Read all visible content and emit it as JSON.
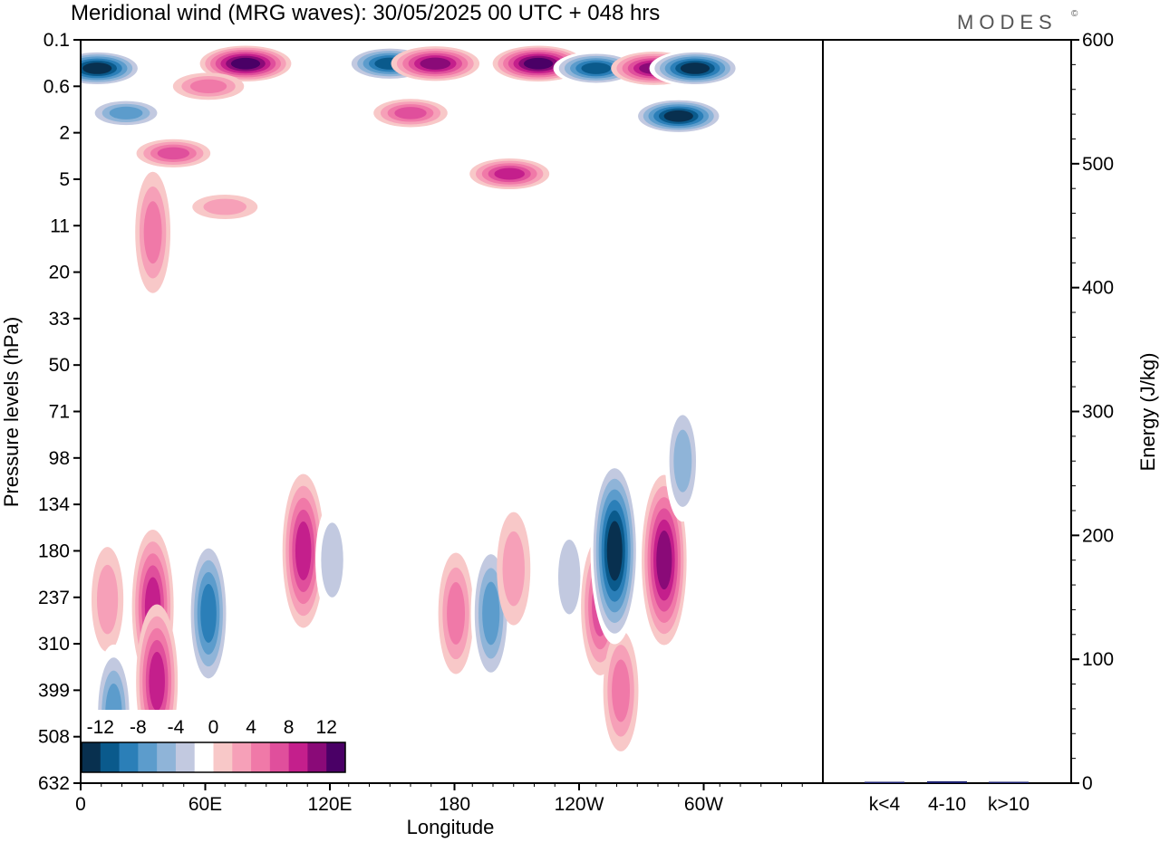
{
  "title": "Meridional wind (MRG waves):  30/05/2025  00 UTC  + 048 hrs",
  "logo": "MODES",
  "logo_mark": "©",
  "chart_data": [
    {
      "type": "heatmap",
      "xlabel": "Longitude",
      "ylabel": "Pressure levels (hPa)",
      "x_ticks": [
        "0",
        "60E",
        "120E",
        "180",
        "120W",
        "60W"
      ],
      "y_ticks": [
        "0.1",
        "0.6",
        "2",
        "5",
        "11",
        "20",
        "33",
        "50",
        "71",
        "98",
        "134",
        "180",
        "237",
        "310",
        "399",
        "508",
        "632"
      ],
      "colorbar": {
        "labels": [
          "-12",
          "-8",
          "-4",
          "0",
          "4",
          "8",
          "12"
        ],
        "levels": [
          -14,
          -12,
          -10,
          -8,
          -6,
          -4,
          -2,
          2,
          4,
          6,
          8,
          10,
          12,
          14
        ],
        "colors": [
          "#08304f",
          "#0a5a8c",
          "#2b7fb8",
          "#5c9ccc",
          "#8fb4d8",
          "#c2c9e0",
          "#ffffff",
          "#f8c8c8",
          "#f6a0b8",
          "#f079a8",
          "#e04f9c",
          "#c41f8c",
          "#8a0a78",
          "#4a0066"
        ]
      },
      "features": [
        {
          "lon": 8,
          "p": 0.3,
          "v": -14
        },
        {
          "lon": 22,
          "p": 1.2,
          "v": -9
        },
        {
          "lon": 45,
          "p": 3.0,
          "v": 8
        },
        {
          "lon": 80,
          "p": 0.25,
          "v": 14
        },
        {
          "lon": 62,
          "p": 0.6,
          "v": 7
        },
        {
          "lon": 150,
          "p": 0.25,
          "v": -13
        },
        {
          "lon": 172,
          "p": 0.25,
          "v": 13
        },
        {
          "lon": 160,
          "p": 1.2,
          "v": 8
        },
        {
          "lon": 222,
          "p": 0.25,
          "v": 14
        },
        {
          "lon": 208,
          "p": 4.5,
          "v": 10
        },
        {
          "lon": 250,
          "p": 0.3,
          "v": -12
        },
        {
          "lon": 278,
          "p": 0.3,
          "v": 12
        },
        {
          "lon": 290,
          "p": 1.3,
          "v": -14
        },
        {
          "lon": 298,
          "p": 0.3,
          "v": -14
        },
        {
          "lon": 35,
          "p": 12,
          "v": 6
        },
        {
          "lon": 70,
          "p": 8,
          "v": 5
        },
        {
          "lon": 35,
          "p": 250,
          "v": 10
        },
        {
          "lon": 37,
          "p": 380,
          "v": 10
        },
        {
          "lon": 13,
          "p": 240,
          "v": 4
        },
        {
          "lon": 16,
          "p": 450,
          "v": -8
        },
        {
          "lon": 62,
          "p": 260,
          "v": -10
        },
        {
          "lon": 108,
          "p": 180,
          "v": 10
        },
        {
          "lon": 122,
          "p": 190,
          "v": -5
        },
        {
          "lon": 182,
          "p": 260,
          "v": 6
        },
        {
          "lon": 199,
          "p": 260,
          "v": -9
        },
        {
          "lon": 210,
          "p": 200,
          "v": 5
        },
        {
          "lon": 237,
          "p": 210,
          "v": -5
        },
        {
          "lon": 252,
          "p": 250,
          "v": 8
        },
        {
          "lon": 262,
          "p": 400,
          "v": 6
        },
        {
          "lon": 259,
          "p": 180,
          "v": -14
        },
        {
          "lon": 283,
          "p": 190,
          "v": 12
        },
        {
          "lon": 292,
          "p": 100,
          "v": -6
        }
      ]
    },
    {
      "type": "bar",
      "categories": [
        "k<4",
        "4-10",
        "k>10"
      ],
      "values": [
        0.5,
        1.5,
        0.2
      ],
      "ylabel": "Energy (J/kg)",
      "ylim": [
        0,
        600
      ],
      "y_ticks": [
        "0",
        "100",
        "200",
        "300",
        "400",
        "500",
        "600"
      ],
      "bar_color": "#1a1f6e"
    }
  ]
}
